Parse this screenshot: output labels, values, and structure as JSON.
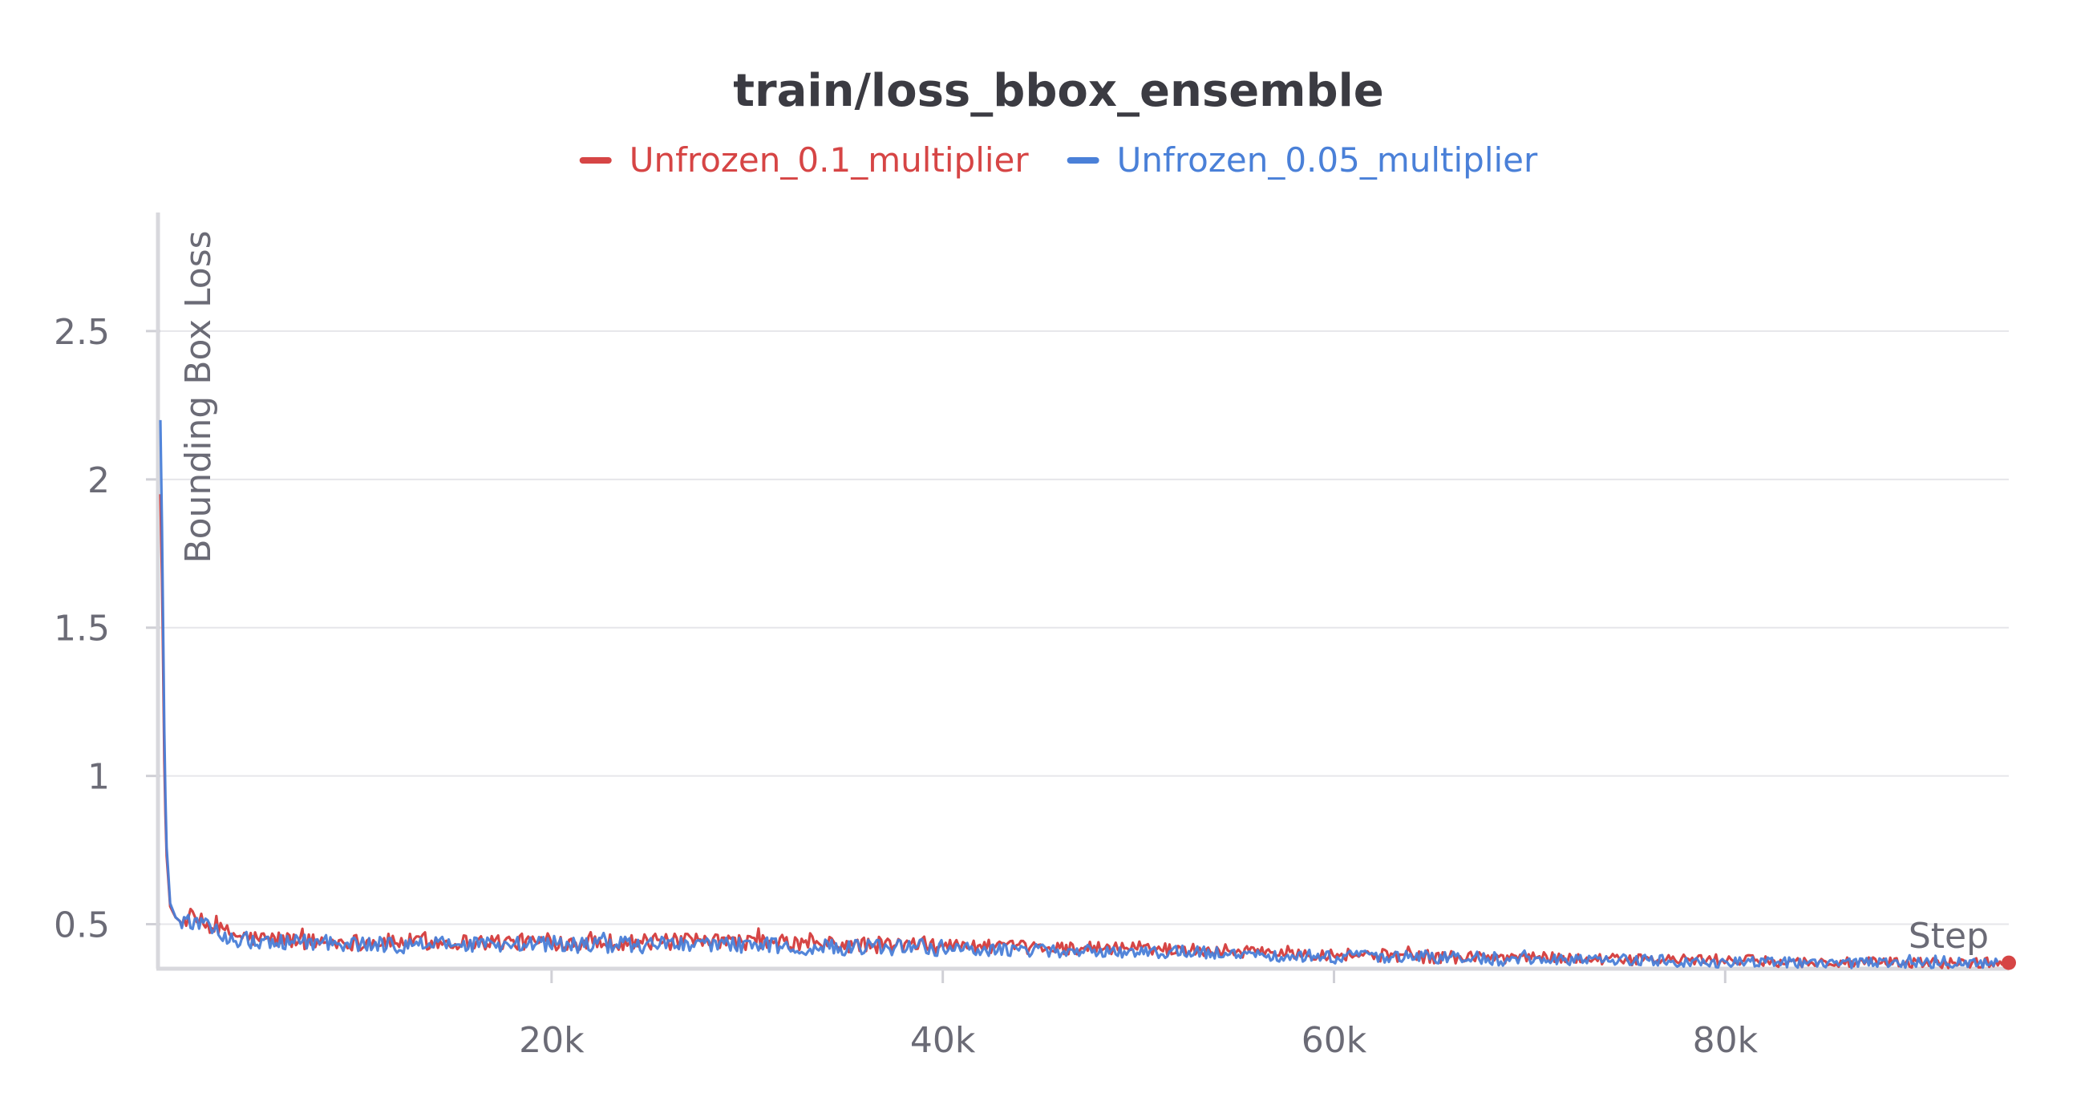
{
  "chart_data": {
    "type": "line",
    "title": "train/loss_bbox_ensemble",
    "xlabel": "Step",
    "ylabel": "Bounding Box Loss",
    "xlim": [
      0,
      94500
    ],
    "ylim": [
      0.35,
      2.9
    ],
    "xticks": [
      {
        "value": 20000,
        "label": "20k"
      },
      {
        "value": 40000,
        "label": "40k"
      },
      {
        "value": 60000,
        "label": "60k"
      },
      {
        "value": 80000,
        "label": "80k"
      }
    ],
    "yticks": [
      {
        "value": 0.5,
        "label": "0.5"
      },
      {
        "value": 1,
        "label": "1"
      },
      {
        "value": 1.5,
        "label": "1.5"
      },
      {
        "value": 2,
        "label": "2"
      },
      {
        "value": 2.5,
        "label": "2.5"
      }
    ],
    "grid": true,
    "legend_position": "top-center",
    "series": [
      {
        "name": "Unfrozen_0.1_multiplier",
        "color": "#d64545",
        "x": [
          0,
          100,
          200,
          300,
          500,
          800,
          1000,
          1500,
          2000,
          3000,
          4000,
          5000,
          6000,
          8000,
          10000,
          15000,
          20000,
          25000,
          30000,
          35000,
          40000,
          45000,
          50000,
          55000,
          60000,
          65000,
          70000,
          75000,
          80000,
          85000,
          90000,
          94500
        ],
        "y": [
          1.95,
          1.6,
          1.05,
          0.75,
          0.56,
          0.52,
          0.51,
          0.52,
          0.51,
          0.48,
          0.46,
          0.45,
          0.45,
          0.44,
          0.44,
          0.44,
          0.44,
          0.44,
          0.44,
          0.43,
          0.43,
          0.42,
          0.42,
          0.41,
          0.4,
          0.39,
          0.39,
          0.38,
          0.38,
          0.37,
          0.37,
          0.37
        ]
      },
      {
        "name": "Unfrozen_0.05_multiplier",
        "color": "#4a80d8",
        "x": [
          0,
          100,
          200,
          300,
          500,
          800,
          1000,
          1500,
          2000,
          3000,
          4000,
          5000,
          6000,
          8000,
          10000,
          15000,
          20000,
          25000,
          30000,
          35000,
          40000,
          45000,
          50000,
          55000,
          60000,
          65000,
          70000,
          75000,
          80000,
          85000,
          90000,
          94000
        ],
        "y": [
          2.2,
          1.75,
          1.15,
          0.78,
          0.57,
          0.52,
          0.51,
          0.51,
          0.5,
          0.47,
          0.45,
          0.44,
          0.44,
          0.44,
          0.43,
          0.43,
          0.43,
          0.43,
          0.43,
          0.42,
          0.42,
          0.41,
          0.41,
          0.4,
          0.39,
          0.39,
          0.38,
          0.38,
          0.37,
          0.37,
          0.37,
          0.37
        ]
      }
    ]
  }
}
